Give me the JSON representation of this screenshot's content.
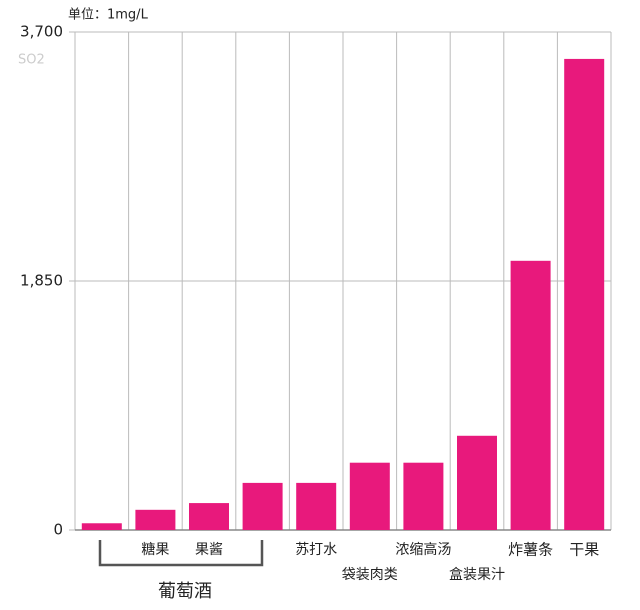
{
  "chart_data": {
    "type": "bar",
    "unit_note": "单位：1mg/L",
    "y_label": "SO2",
    "categories": [
      null,
      "糖果",
      "果酱",
      null,
      "苏打水",
      "袋装肉类",
      "浓缩高汤",
      "盒装果汁",
      "炸薯条",
      "干果"
    ],
    "values": [
      50,
      150,
      200,
      350,
      350,
      500,
      500,
      700,
      2000,
      3500
    ],
    "color": "#e8197c",
    "group_label": "葡萄酒",
    "ylim": [
      0,
      3700
    ],
    "yticks": [
      0,
      {
        "value": 1850,
        "label": "1,850"
      },
      {
        "value": 3700,
        "label": "3,700"
      }
    ],
    "grid": true
  }
}
